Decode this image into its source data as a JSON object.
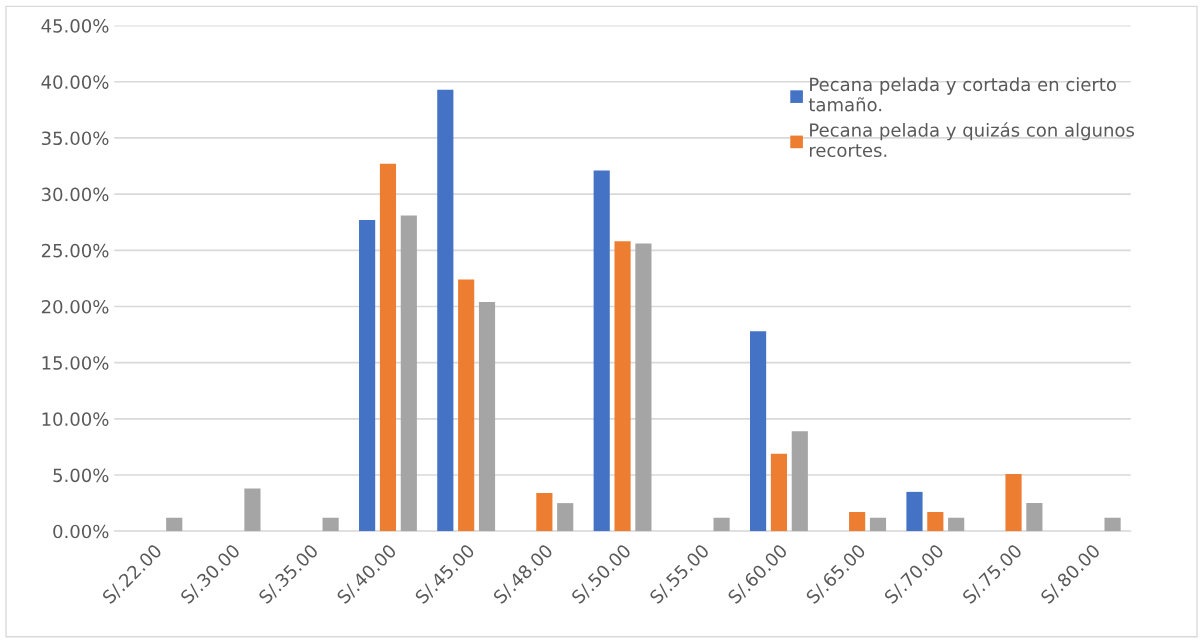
{
  "chart_data": {
    "type": "bar",
    "categories": [
      "S/.22.00",
      "S/.30.00",
      "S/.35.00",
      "S/.40.00",
      "S/.45.00",
      "S/.48.00",
      "S/.50.00",
      "S/.55.00",
      "S/.60.00",
      "S/.65.00",
      "S/.70.00",
      "S/.75.00",
      "S/.80.00"
    ],
    "series": [
      {
        "name": "Pecana pelada y cortada en cierto tamaño.",
        "color": "#4472c4",
        "values": [
          0,
          0,
          0,
          27.7,
          39.3,
          0,
          32.1,
          0,
          17.8,
          0,
          3.5,
          0,
          0
        ]
      },
      {
        "name": "Pecana pelada y quizás con algunos recortes.",
        "color": "#ed7d31",
        "values": [
          0,
          0,
          0,
          32.7,
          22.4,
          3.4,
          25.8,
          0,
          6.9,
          1.7,
          1.7,
          5.1,
          0
        ]
      },
      {
        "color": "#a5a5a5",
        "values": [
          1.2,
          3.8,
          1.2,
          28.1,
          20.4,
          2.5,
          25.6,
          1.2,
          8.9,
          1.2,
          1.2,
          2.5,
          1.2
        ]
      }
    ],
    "ylim": [
      0,
      45
    ],
    "yticks": [
      {
        "value": 0,
        "label": "0.00%"
      },
      {
        "value": 5,
        "label": "5.00%"
      },
      {
        "value": 10,
        "label": "10.00%"
      },
      {
        "value": 15,
        "label": "15.00%"
      },
      {
        "value": 20,
        "label": "20.00%"
      },
      {
        "value": 25,
        "label": "25.00%"
      },
      {
        "value": 30,
        "label": "30.00%"
      },
      {
        "value": 35,
        "label": "35.00%"
      },
      {
        "value": 40,
        "label": "40.00%"
      },
      {
        "value": 45,
        "label": "45.00%"
      }
    ],
    "grid": "y",
    "legend": "top right"
  }
}
